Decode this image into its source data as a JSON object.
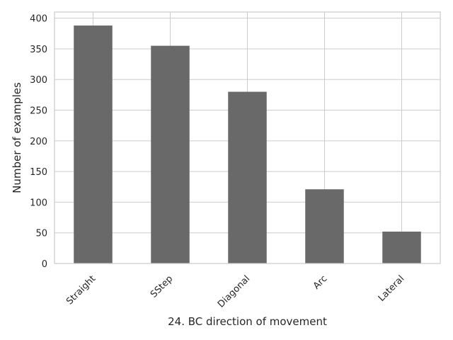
{
  "chart_data": {
    "type": "bar",
    "title": "",
    "xlabel": "24. BC direction of movement",
    "ylabel": "Number of examples",
    "categories": [
      "Straight",
      "SStep",
      "Diagonal",
      "Arc",
      "Lateral"
    ],
    "values": [
      388,
      355,
      280,
      121,
      52
    ],
    "ylim": [
      0,
      410
    ],
    "yticks": [
      0,
      50,
      100,
      150,
      200,
      250,
      300,
      350,
      400
    ],
    "grid": true,
    "bar_color": "#696969",
    "grid_color": "#cccccc"
  }
}
